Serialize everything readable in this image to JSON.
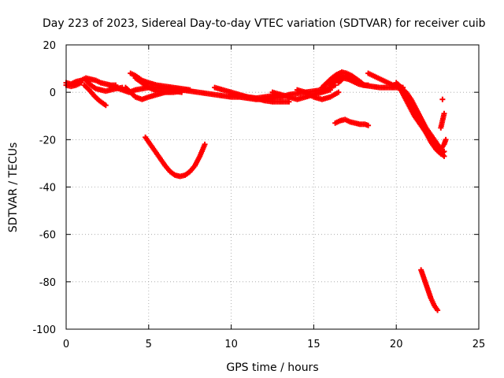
{
  "chart_data": {
    "type": "scatter",
    "title": "Day 223 of 2023, Sidereal Day-to-day VTEC variation (SDTVAR) for receiver cuib",
    "xlabel": "GPS time / hours",
    "ylabel": "SDTVAR / TECUs",
    "xlim": [
      0,
      25
    ],
    "ylim": [
      -100,
      20
    ],
    "xticks": [
      0,
      5,
      10,
      15,
      20,
      25
    ],
    "yticks": [
      20,
      0,
      -20,
      -40,
      -60,
      -80,
      -100
    ],
    "grid": true,
    "marker": "+",
    "series": [
      {
        "name": "SDTVAR",
        "color": "#ff0000",
        "tracks": [
          [
            [
              0,
              4
            ],
            [
              0.3,
              3.5
            ],
            [
              0.6,
              4.5
            ],
            [
              0.9,
              5
            ],
            [
              1.2,
              6
            ],
            [
              1.5,
              5.5
            ],
            [
              1.8,
              5
            ],
            [
              2.1,
              4
            ],
            [
              2.4,
              3.5
            ],
            [
              2.7,
              3
            ],
            [
              3.0,
              3
            ]
          ],
          [
            [
              0,
              3
            ],
            [
              0.3,
              2.5
            ],
            [
              0.6,
              3
            ],
            [
              0.9,
              4
            ]
          ],
          [
            [
              1.1,
              3
            ],
            [
              1.4,
              1
            ],
            [
              1.7,
              -1.5
            ],
            [
              2.0,
              -3.5
            ],
            [
              2.4,
              -5.5
            ]
          ],
          [
            [
              1.2,
              5
            ],
            [
              1.5,
              3
            ],
            [
              1.8,
              1.5
            ],
            [
              2.1,
              1
            ],
            [
              2.4,
              0.5
            ],
            [
              2.7,
              1
            ],
            [
              3.0,
              1.5
            ],
            [
              3.4,
              2
            ]
          ],
          [
            [
              2.6,
              3
            ],
            [
              3.0,
              2
            ],
            [
              3.4,
              1
            ],
            [
              3.8,
              0
            ],
            [
              4.2,
              1
            ],
            [
              4.6,
              1.5
            ],
            [
              5.0,
              2
            ],
            [
              5.5,
              2
            ],
            [
              6.0,
              1.5
            ],
            [
              6.5,
              1.5
            ],
            [
              7.0,
              1
            ],
            [
              7.5,
              0.5
            ],
            [
              8.0,
              0
            ],
            [
              8.5,
              -0.5
            ],
            [
              9.0,
              -1
            ],
            [
              9.5,
              -1.5
            ],
            [
              10.0,
              -2
            ],
            [
              10.5,
              -2
            ],
            [
              11.0,
              -2.5
            ],
            [
              11.5,
              -3
            ],
            [
              12.0,
              -3
            ],
            [
              12.5,
              -2.5
            ],
            [
              13.0,
              -2
            ],
            [
              13.5,
              -1
            ],
            [
              14.0,
              -0.5
            ],
            [
              14.5,
              0
            ],
            [
              15.0,
              0.5
            ],
            [
              15.5,
              1
            ],
            [
              16.0,
              2
            ],
            [
              16.3,
              3
            ]
          ],
          [
            [
              3.9,
              8
            ],
            [
              4.2,
              7
            ],
            [
              4.6,
              5
            ],
            [
              5.0,
              4
            ],
            [
              5.5,
              3
            ],
            [
              6.0,
              2.5
            ],
            [
              6.5,
              2
            ],
            [
              7.0,
              1.5
            ],
            [
              7.5,
              1
            ]
          ],
          [
            [
              3.6,
              2
            ],
            [
              3.9,
              0
            ],
            [
              4.2,
              -2
            ],
            [
              4.6,
              -3
            ],
            [
              5.0,
              -2
            ],
            [
              5.5,
              -1
            ],
            [
              6.0,
              0
            ],
            [
              6.5,
              0.5
            ],
            [
              7.0,
              0
            ]
          ],
          [
            [
              4.2,
              6
            ],
            [
              4.6,
              4
            ],
            [
              5.0,
              2
            ],
            [
              5.5,
              0.5
            ],
            [
              6.0,
              0
            ],
            [
              6.5,
              0
            ],
            [
              7.0,
              0.5
            ]
          ],
          [
            [
              9.0,
              2
            ],
            [
              9.5,
              1
            ],
            [
              10.0,
              0
            ],
            [
              10.5,
              -1
            ],
            [
              11.0,
              -2
            ],
            [
              11.5,
              -2.5
            ],
            [
              12.0,
              -3.5
            ],
            [
              12.5,
              -4
            ],
            [
              13.0,
              -4
            ],
            [
              13.5,
              -4
            ]
          ],
          [
            [
              10.0,
              -1
            ],
            [
              10.5,
              -1.5
            ],
            [
              11.0,
              -2
            ],
            [
              11.5,
              -2.5
            ],
            [
              12.0,
              -2
            ],
            [
              12.5,
              -1.5
            ],
            [
              13.0,
              -1
            ]
          ],
          [
            [
              12.5,
              0
            ],
            [
              13.0,
              -1
            ],
            [
              13.5,
              -2
            ],
            [
              14.0,
              -3
            ],
            [
              14.5,
              -2
            ],
            [
              15.0,
              -1
            ],
            [
              15.5,
              0
            ],
            [
              16.0,
              1
            ]
          ],
          [
            [
              14.0,
              1
            ],
            [
              14.5,
              0
            ],
            [
              15.0,
              -2
            ],
            [
              15.5,
              -3
            ],
            [
              16.0,
              -2
            ],
            [
              16.5,
              0
            ]
          ],
          [
            [
              15.5,
              2
            ],
            [
              15.8,
              4
            ],
            [
              16.1,
              6
            ],
            [
              16.4,
              7.5
            ],
            [
              16.7,
              8.5
            ],
            [
              17.0,
              8
            ],
            [
              17.3,
              7
            ],
            [
              17.6,
              5.5
            ],
            [
              17.9,
              4
            ]
          ],
          [
            [
              16.0,
              3
            ],
            [
              16.3,
              5
            ],
            [
              16.6,
              6.5
            ],
            [
              16.9,
              7
            ],
            [
              17.2,
              6
            ],
            [
              17.5,
              5
            ],
            [
              17.8,
              4
            ],
            [
              18.1,
              3
            ]
          ],
          [
            [
              16.5,
              4
            ],
            [
              16.8,
              6
            ],
            [
              17.1,
              5.5
            ],
            [
              17.4,
              4.5
            ],
            [
              17.7,
              3.5
            ],
            [
              18.0,
              3
            ],
            [
              18.3,
              3
            ]
          ],
          [
            [
              16.3,
              -13
            ],
            [
              16.6,
              -12
            ],
            [
              16.9,
              -11.5
            ],
            [
              17.2,
              -12.5
            ],
            [
              17.5,
              -13
            ],
            [
              17.8,
              -13.5
            ],
            [
              18.1,
              -13.5
            ],
            [
              18.3,
              -14
            ]
          ],
          [
            [
              18.3,
              8
            ],
            [
              18.6,
              7
            ],
            [
              18.9,
              6
            ],
            [
              19.2,
              5
            ],
            [
              19.5,
              4
            ],
            [
              19.8,
              3
            ],
            [
              20.1,
              2.5
            ],
            [
              20.4,
              2
            ]
          ],
          [
            [
              18.0,
              3
            ],
            [
              18.5,
              2.5
            ],
            [
              19.0,
              2
            ],
            [
              19.5,
              2
            ],
            [
              20.0,
              2
            ],
            [
              20.3,
              1.5
            ],
            [
              20.6,
              0
            ],
            [
              20.9,
              -3
            ],
            [
              21.2,
              -7
            ],
            [
              21.5,
              -11
            ],
            [
              21.8,
              -15
            ],
            [
              22.1,
              -18
            ],
            [
              22.4,
              -21
            ],
            [
              22.7,
              -24
            ],
            [
              22.9,
              -22
            ],
            [
              23.0,
              -20
            ]
          ],
          [
            [
              20.0,
              4
            ],
            [
              20.3,
              2
            ],
            [
              20.6,
              -1
            ],
            [
              20.9,
              -5
            ],
            [
              21.2,
              -9
            ],
            [
              21.5,
              -13
            ],
            [
              21.8,
              -17
            ],
            [
              22.1,
              -21
            ],
            [
              22.4,
              -24
            ],
            [
              22.7,
              -26
            ],
            [
              22.9,
              -25
            ]
          ],
          [
            [
              20.2,
              2
            ],
            [
              20.5,
              -2
            ],
            [
              20.8,
              -6
            ],
            [
              21.1,
              -10
            ],
            [
              21.4,
              -13
            ],
            [
              21.7,
              -16
            ],
            [
              22.0,
              -19
            ],
            [
              22.3,
              -22
            ],
            [
              22.6,
              -25
            ],
            [
              22.9,
              -27
            ]
          ],
          [
            [
              22.7,
              -15
            ],
            [
              22.8,
              -12
            ],
            [
              22.9,
              -9
            ]
          ],
          [
            [
              22.8,
              -3
            ]
          ],
          [
            [
              4.8,
              -19
            ],
            [
              5.1,
              -22
            ],
            [
              5.4,
              -25
            ],
            [
              5.7,
              -28
            ],
            [
              6.0,
              -31
            ],
            [
              6.3,
              -33.5
            ],
            [
              6.6,
              -35
            ],
            [
              6.9,
              -35.5
            ],
            [
              7.2,
              -35
            ],
            [
              7.5,
              -33.5
            ],
            [
              7.8,
              -31
            ],
            [
              8.1,
              -27
            ],
            [
              8.4,
              -22
            ]
          ],
          [
            [
              21.5,
              -75
            ],
            [
              21.7,
              -79
            ],
            [
              21.9,
              -83
            ],
            [
              22.1,
              -87
            ],
            [
              22.3,
              -90
            ],
            [
              22.5,
              -92
            ]
          ]
        ]
      }
    ]
  }
}
